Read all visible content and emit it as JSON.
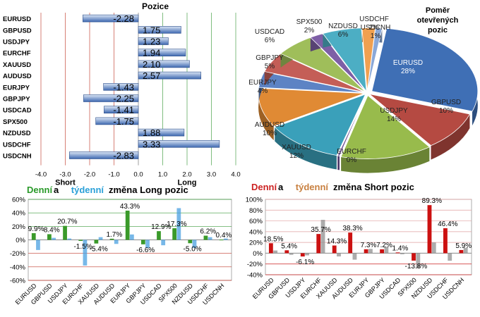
{
  "chart_data": [
    {
      "type": "bar",
      "orientation": "horizontal",
      "title": "Pozice",
      "categories": [
        "EURUSD",
        "GBPUSD",
        "USDJPY",
        "EURCHF",
        "XAUUSD",
        "AUDUSD",
        "EURJPY",
        "GBPJPY",
        "USDCAD",
        "SPX500",
        "NZDUSD",
        "USDCHF",
        "USDCNH"
      ],
      "values": [
        -2.28,
        1.75,
        1.23,
        1.94,
        2.1,
        2.57,
        -1.43,
        -2.25,
        -1.41,
        -1.75,
        1.88,
        3.33,
        -2.83
      ],
      "value_labels": [
        "-2.28",
        "1.75",
        "1.23",
        "1.94",
        "2.10",
        "2.57",
        "-1.43",
        "-2.25",
        "-1.41",
        "-1.75",
        "1.88",
        "3.33",
        "-2.83"
      ],
      "xlim": [
        -4.0,
        4.0
      ],
      "xticks": [
        "-4.0",
        "-3.0",
        "-2.0",
        "-1.0",
        "0.0",
        "1.0",
        "2.0",
        "3.0",
        "4.0"
      ],
      "annotations": [
        "Short",
        "Long"
      ],
      "colors": {
        "bar": "#3d68b0",
        "bar_light": "#dbe6f5",
        "grid_red": "#c0392b",
        "grid_green": "#3a9a3a"
      }
    },
    {
      "type": "pie",
      "title": "Poměr otevřených pozic",
      "slices": [
        {
          "label": "EURUSD",
          "value": 28,
          "text": "28%",
          "color": "#3f6fb5"
        },
        {
          "label": "GBPUSD",
          "value": 10,
          "text": "10%",
          "color": "#b54a42"
        },
        {
          "label": "USDJPY",
          "value": 14,
          "text": "14%",
          "color": "#98bb4c"
        },
        {
          "label": "EURCHF",
          "value": 0,
          "text": "0%",
          "color": "#6e4f97"
        },
        {
          "label": "XAUUSD",
          "value": 12,
          "text": "12%",
          "color": "#3aa0ba"
        },
        {
          "label": "AUDUSD",
          "value": 10,
          "text": "10%",
          "color": "#e08a34"
        },
        {
          "label": "EURJPY",
          "value": 4,
          "text": "4%",
          "color": "#5d83c4"
        },
        {
          "label": "GBPJPY",
          "value": 5,
          "text": "5%",
          "color": "#c45e57"
        },
        {
          "label": "USDCAD",
          "value": 6,
          "text": "6%",
          "color": "#9fbe5a"
        },
        {
          "label": "SPX500",
          "value": 2,
          "text": "2%",
          "color": "#7e5fa6"
        },
        {
          "label": "NZDUSD",
          "value": 6,
          "text": "6%",
          "color": "#4caec4"
        },
        {
          "label": "USDCHF",
          "value": 2,
          "text": "2%",
          "color": "#f0a050"
        },
        {
          "label": "USDCNH",
          "value": 1,
          "text": "1%",
          "color": "#8aa8d8"
        }
      ]
    },
    {
      "type": "bar",
      "title_parts": [
        "Denní",
        " a ",
        "týdenní",
        " změna Long pozic"
      ],
      "title_colors": [
        "#2a9a2a",
        "#000000",
        "#2aa0d8",
        "#000000"
      ],
      "categories": [
        "EURUSD",
        "GBPUSD",
        "USDJPY",
        "EURCHF",
        "XAUUSD",
        "AUDUSD",
        "EURJPY",
        "GBPJPY",
        "USDCAD",
        "SPX500",
        "NZDUSD",
        "USDCHF",
        "USDCNH"
      ],
      "series": [
        {
          "values": [
            9.9,
            8.4,
            20.7,
            -1.5,
            -5.4,
            1.7,
            43.3,
            -6.6,
            12.9,
            17.3,
            -5.0,
            6.2,
            0.4
          ],
          "color": "#3a9a2a"
        },
        {
          "values": [
            -15,
            3,
            2,
            -38,
            4,
            -6,
            8,
            -12,
            -8,
            47,
            -12,
            4,
            2
          ],
          "color": "#4aa0e0"
        }
      ],
      "labels": [
        "9.9%",
        "8.4%",
        "20.7%",
        "-1.5%",
        "-5.4%",
        "1.7%",
        "43.3%",
        "-6.6%",
        "12.9%",
        "17.3%",
        "-5.0%",
        "6.2%",
        "0.4%"
      ],
      "ylim": [
        -60,
        60
      ],
      "yticks": [
        "60%",
        "40%",
        "20%",
        "0%",
        "-20%",
        "-40%",
        "-60%"
      ]
    },
    {
      "type": "bar",
      "title_parts": [
        "Denní",
        " a ",
        "týdenní",
        " změna Short pozic"
      ],
      "title_colors": [
        "#cc2222",
        "#000000",
        "#c88040",
        "#000000"
      ],
      "categories": [
        "EURUSD",
        "GBPUSD",
        "USDJPY",
        "EURCHF",
        "XAUUSD",
        "AUDUSD",
        "EURJPY",
        "GBPJPY",
        "USDCAD",
        "SPX500",
        "NZDUSD",
        "USDCHF",
        "USDCNH"
      ],
      "series": [
        {
          "values": [
            18.5,
            5.4,
            -6.1,
            35.7,
            14.3,
            38.3,
            7.3,
            7.2,
            1.4,
            -13.8,
            89.3,
            46.4,
            5.9
          ],
          "color": "#cc1111"
        },
        {
          "values": [
            5,
            -3,
            -4,
            62,
            -6,
            -12,
            8,
            12,
            -2,
            -28,
            20,
            -14,
            10
          ],
          "color": "#909090"
        }
      ],
      "labels": [
        "18.5%",
        "5.4%",
        "-6.1%",
        "35.7%",
        "14.3%",
        "38.3%",
        "7.3%",
        "7.2%",
        "1.4%",
        "-13.8%",
        "89.3%",
        "46.4%",
        "5.9%"
      ],
      "ylim": [
        -40,
        100
      ],
      "yticks": [
        "100%",
        "80%",
        "60%",
        "40%",
        "20%",
        "0%",
        "-20%",
        "-40%"
      ]
    }
  ]
}
